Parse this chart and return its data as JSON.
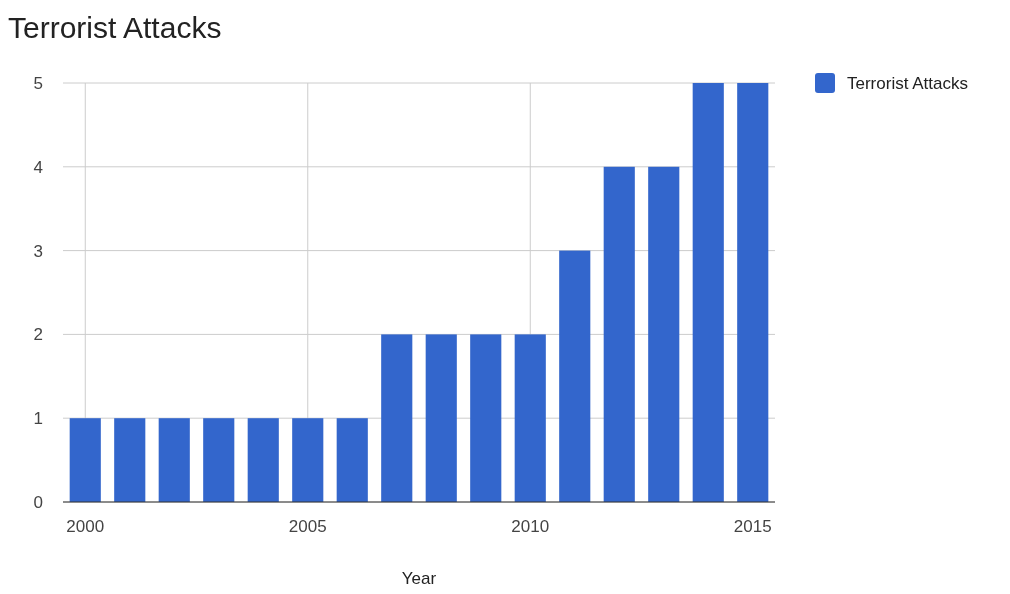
{
  "chart_data": {
    "type": "bar",
    "title": "Terrorist Attacks",
    "xlabel": "Year",
    "x": [
      2000,
      2001,
      2002,
      2003,
      2004,
      2005,
      2006,
      2007,
      2008,
      2009,
      2010,
      2011,
      2012,
      2013,
      2014,
      2015
    ],
    "series": [
      {
        "name": "Terrorist Attacks",
        "color": "#3366cc",
        "values": [
          1,
          1,
          1,
          1,
          1,
          1,
          1,
          2,
          2,
          2,
          2,
          3,
          4,
          4,
          5,
          5
        ]
      }
    ],
    "xlim": [
      1999.5,
      2015.5
    ],
    "xticks": [
      2000,
      2005,
      2010,
      2015
    ],
    "ylim": [
      0,
      5
    ],
    "yticks": [
      0,
      1,
      2,
      3,
      4,
      5
    ],
    "grid": true,
    "legend": "top right"
  }
}
